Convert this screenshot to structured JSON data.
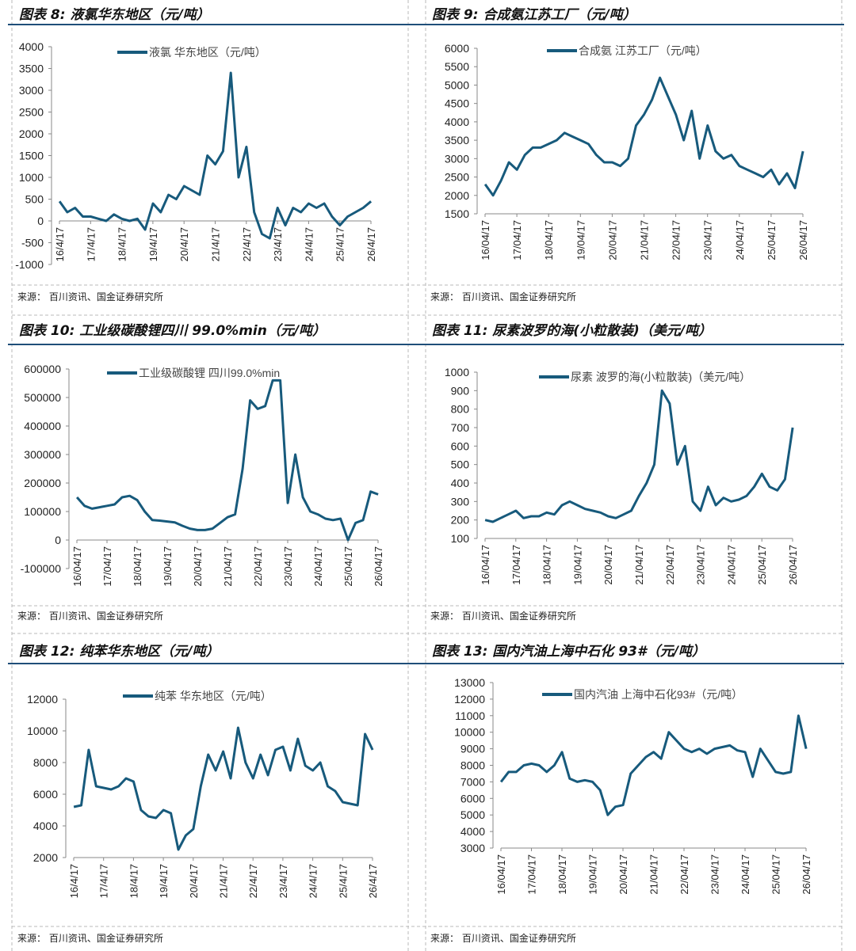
{
  "source_text": "来源：  百川资讯、国金证券研究所",
  "line_color": "#175a7c",
  "rule_color": "#1f4e79",
  "chart_data": [
    {
      "type": "line",
      "title": "图表 8:  液氯华东地区（元/吨）",
      "legend": "液氯 华东地区（元/吨）",
      "ylim": [
        -1000,
        4000
      ],
      "ytick_step": 500,
      "yticks": [
        "-1000",
        "-500",
        "0",
        "500",
        "1000",
        "1500",
        "2000",
        "2500",
        "3000",
        "3500",
        "4000"
      ],
      "xtick_labels": [
        "16/4/17",
        "17/4/17",
        "18/4/17",
        "19/4/17",
        "20/4/17",
        "21/4/17",
        "22/4/17",
        "23/4/17",
        "24/4/17",
        "25/4/17",
        "26/4/17"
      ],
      "x": [
        "2016-04",
        "2016-07",
        "2016-10",
        "2017-01",
        "2017-04",
        "2017-07",
        "2017-10",
        "2018-01",
        "2018-04",
        "2018-07",
        "2018-10",
        "2019-01",
        "2019-04",
        "2019-07",
        "2019-10",
        "2020-01",
        "2020-04",
        "2020-07",
        "2020-10",
        "2021-01",
        "2021-04",
        "2021-07",
        "2021-10",
        "2022-01",
        "2022-04",
        "2022-07",
        "2022-10",
        "2023-01",
        "2023-04",
        "2023-07",
        "2023-10",
        "2024-01",
        "2024-04",
        "2024-07",
        "2024-10",
        "2025-01",
        "2025-04",
        "2025-07",
        "2025-10",
        "2026-01",
        "2026-04"
      ],
      "values": [
        450,
        200,
        300,
        100,
        100,
        50,
        0,
        150,
        50,
        0,
        50,
        -200,
        400,
        200,
        600,
        500,
        800,
        700,
        600,
        1500,
        1300,
        1600,
        3400,
        1000,
        1700,
        200,
        -300,
        -400,
        300,
        -100,
        300,
        200,
        400,
        300,
        400,
        100,
        -100,
        100,
        200,
        300,
        450
      ]
    },
    {
      "type": "line",
      "title": "图表 9:  合成氨江苏工厂（元/吨）",
      "legend": "合成氨 江苏工厂（元/吨）",
      "ylim": [
        1500,
        6000
      ],
      "ytick_step": 500,
      "yticks": [
        "1500",
        "2000",
        "2500",
        "3000",
        "3500",
        "4000",
        "4500",
        "5000",
        "5500",
        "6000"
      ],
      "xtick_labels": [
        "16/04/17",
        "17/04/17",
        "18/04/17",
        "19/04/17",
        "20/04/17",
        "21/04/17",
        "22/04/17",
        "23/04/17",
        "24/04/17",
        "25/04/17",
        "26/04/17"
      ],
      "x": [
        "2016-04",
        "2016-07",
        "2016-10",
        "2017-01",
        "2017-04",
        "2017-07",
        "2017-10",
        "2018-01",
        "2018-04",
        "2018-07",
        "2018-10",
        "2019-01",
        "2019-04",
        "2019-07",
        "2019-10",
        "2020-01",
        "2020-04",
        "2020-07",
        "2020-10",
        "2021-01",
        "2021-04",
        "2021-07",
        "2021-10",
        "2022-01",
        "2022-04",
        "2022-07",
        "2022-10",
        "2023-01",
        "2023-04",
        "2023-07",
        "2023-10",
        "2024-01",
        "2024-04",
        "2024-07",
        "2024-10",
        "2025-01",
        "2025-04",
        "2025-07",
        "2025-10",
        "2026-01",
        "2026-04"
      ],
      "values": [
        2300,
        2000,
        2400,
        2900,
        2700,
        3100,
        3300,
        3300,
        3400,
        3500,
        3700,
        3600,
        3500,
        3400,
        3100,
        2900,
        2900,
        2800,
        3000,
        3900,
        4200,
        4600,
        5200,
        4700,
        4200,
        3500,
        4300,
        3000,
        3900,
        3200,
        3000,
        3100,
        2800,
        2700,
        2600,
        2500,
        2700,
        2300,
        2600,
        2200,
        3200
      ]
    },
    {
      "type": "line",
      "title": "图表 10:  工业级碳酸锂四川 99.0%min（元/吨）",
      "legend": "工业级碳酸锂 四川99.0%min",
      "ylim": [
        -100000,
        600000
      ],
      "ytick_step": 100000,
      "yticks": [
        "-100000",
        "0",
        "100000",
        "200000",
        "300000",
        "400000",
        "500000",
        "600000"
      ],
      "xtick_labels": [
        "16/04/17",
        "17/04/17",
        "18/04/17",
        "19/04/17",
        "20/04/17",
        "21/04/17",
        "22/04/17",
        "23/04/17",
        "24/04/17",
        "25/04/17",
        "26/04/17"
      ],
      "x": [
        "2016-04",
        "2016-07",
        "2016-10",
        "2017-01",
        "2017-04",
        "2017-07",
        "2017-10",
        "2018-01",
        "2018-04",
        "2018-07",
        "2018-10",
        "2019-01",
        "2019-04",
        "2019-07",
        "2019-10",
        "2020-01",
        "2020-04",
        "2020-07",
        "2020-10",
        "2021-01",
        "2021-04",
        "2021-07",
        "2021-10",
        "2022-01",
        "2022-04",
        "2022-07",
        "2022-10",
        "2023-01",
        "2023-04",
        "2023-07",
        "2023-10",
        "2024-01",
        "2024-04",
        "2024-07",
        "2024-10",
        "2025-01",
        "2025-04",
        "2025-07",
        "2025-10",
        "2026-01",
        "2026-04"
      ],
      "values": [
        150000,
        120000,
        110000,
        115000,
        120000,
        125000,
        150000,
        155000,
        140000,
        100000,
        70000,
        68000,
        65000,
        62000,
        50000,
        40000,
        35000,
        35000,
        40000,
        60000,
        80000,
        90000,
        250000,
        490000,
        460000,
        470000,
        560000,
        560000,
        130000,
        300000,
        150000,
        100000,
        90000,
        75000,
        70000,
        75000,
        0,
        60000,
        70000,
        170000,
        160000
      ]
    },
    {
      "type": "line",
      "title": "图表 11:  尿素波罗的海(小粒散装)（美元/吨）",
      "legend": "尿素 波罗的海(小粒散装)（美元/吨）",
      "ylim": [
        100,
        1000
      ],
      "ytick_step": 100,
      "yticks": [
        "100",
        "200",
        "300",
        "400",
        "500",
        "600",
        "700",
        "800",
        "900",
        "1000"
      ],
      "xtick_labels": [
        "16/04/17",
        "17/04/17",
        "18/04/17",
        "19/04/17",
        "20/04/17",
        "21/04/17",
        "22/04/17",
        "23/04/17",
        "24/04/17",
        "25/04/17",
        "26/04/17"
      ],
      "x": [
        "2016-04",
        "2016-07",
        "2016-10",
        "2017-01",
        "2017-04",
        "2017-07",
        "2017-10",
        "2018-01",
        "2018-04",
        "2018-07",
        "2018-10",
        "2019-01",
        "2019-04",
        "2019-07",
        "2019-10",
        "2020-01",
        "2020-04",
        "2020-07",
        "2020-10",
        "2021-01",
        "2021-04",
        "2021-07",
        "2021-10",
        "2022-01",
        "2022-04",
        "2022-07",
        "2022-10",
        "2023-01",
        "2023-04",
        "2023-07",
        "2023-10",
        "2024-01",
        "2024-04",
        "2024-07",
        "2024-10",
        "2025-01",
        "2025-04",
        "2025-07",
        "2025-10",
        "2026-01",
        "2026-04"
      ],
      "values": [
        200,
        190,
        210,
        230,
        250,
        210,
        220,
        220,
        240,
        230,
        280,
        300,
        280,
        260,
        250,
        240,
        220,
        210,
        230,
        250,
        330,
        400,
        500,
        900,
        830,
        500,
        600,
        300,
        250,
        380,
        280,
        320,
        300,
        310,
        330,
        380,
        450,
        380,
        360,
        420,
        700
      ]
    },
    {
      "type": "line",
      "title": "图表 12:  纯苯华东地区（元/吨）",
      "legend": "纯苯 华东地区（元/吨）",
      "ylim": [
        2000,
        12000
      ],
      "ytick_step": 2000,
      "yticks": [
        "2000",
        "4000",
        "6000",
        "8000",
        "10000",
        "12000"
      ],
      "xtick_labels": [
        "16/4/17",
        "17/4/17",
        "18/4/17",
        "19/4/17",
        "20/4/17",
        "21/4/17",
        "22/4/17",
        "23/4/17",
        "24/4/17",
        "25/4/17",
        "26/4/17"
      ],
      "x": [
        "2016-04",
        "2016-07",
        "2016-10",
        "2017-01",
        "2017-04",
        "2017-07",
        "2017-10",
        "2018-01",
        "2018-04",
        "2018-07",
        "2018-10",
        "2019-01",
        "2019-04",
        "2019-07",
        "2019-10",
        "2020-01",
        "2020-04",
        "2020-07",
        "2020-10",
        "2021-01",
        "2021-04",
        "2021-07",
        "2021-10",
        "2022-01",
        "2022-04",
        "2022-07",
        "2022-10",
        "2023-01",
        "2023-04",
        "2023-07",
        "2023-10",
        "2024-01",
        "2024-04",
        "2024-07",
        "2024-10",
        "2025-01",
        "2025-04",
        "2025-07",
        "2025-10",
        "2026-01",
        "2026-04"
      ],
      "values": [
        5200,
        5300,
        8800,
        6500,
        6400,
        6300,
        6500,
        7000,
        6800,
        5000,
        4600,
        4500,
        5000,
        4800,
        2500,
        3400,
        3800,
        6500,
        8500,
        7500,
        8700,
        7000,
        10200,
        8000,
        7000,
        8500,
        7200,
        8800,
        9000,
        7500,
        9500,
        7800,
        7500,
        8000,
        6500,
        6200,
        5500,
        5400,
        5300,
        9800,
        8800
      ]
    },
    {
      "type": "line",
      "title": "图表 13:  国内汽油上海中石化 93#（元/吨）",
      "legend": "国内汽油 上海中石化93#（元/吨）",
      "ylim": [
        3000,
        13000
      ],
      "ytick_step": 1000,
      "yticks": [
        "3000",
        "4000",
        "5000",
        "6000",
        "7000",
        "8000",
        "9000",
        "10000",
        "11000",
        "12000",
        "13000"
      ],
      "xtick_labels": [
        "16/04/17",
        "17/04/17",
        "18/04/17",
        "19/04/17",
        "20/04/17",
        "21/04/17",
        "22/04/17",
        "23/04/17",
        "24/04/17",
        "25/04/17",
        "26/04/17"
      ],
      "x": [
        "2016-04",
        "2016-07",
        "2016-10",
        "2017-01",
        "2017-04",
        "2017-07",
        "2017-10",
        "2018-01",
        "2018-04",
        "2018-07",
        "2018-10",
        "2019-01",
        "2019-04",
        "2019-07",
        "2019-10",
        "2020-01",
        "2020-04",
        "2020-07",
        "2020-10",
        "2021-01",
        "2021-04",
        "2021-07",
        "2021-10",
        "2022-01",
        "2022-04",
        "2022-07",
        "2022-10",
        "2023-01",
        "2023-04",
        "2023-07",
        "2023-10",
        "2024-01",
        "2024-04",
        "2024-07",
        "2024-10",
        "2025-01",
        "2025-04",
        "2025-07",
        "2025-10",
        "2026-01",
        "2026-04"
      ],
      "values": [
        7000,
        7600,
        7600,
        8000,
        8100,
        8000,
        7600,
        8000,
        8800,
        7200,
        7000,
        7100,
        7000,
        6500,
        5000,
        5500,
        5600,
        7500,
        8000,
        8500,
        8800,
        8400,
        10000,
        9500,
        9000,
        8800,
        9000,
        8700,
        9000,
        9100,
        9200,
        8900,
        8800,
        7300,
        9000,
        8300,
        7600,
        7500,
        7600,
        11000,
        9000
      ]
    }
  ]
}
